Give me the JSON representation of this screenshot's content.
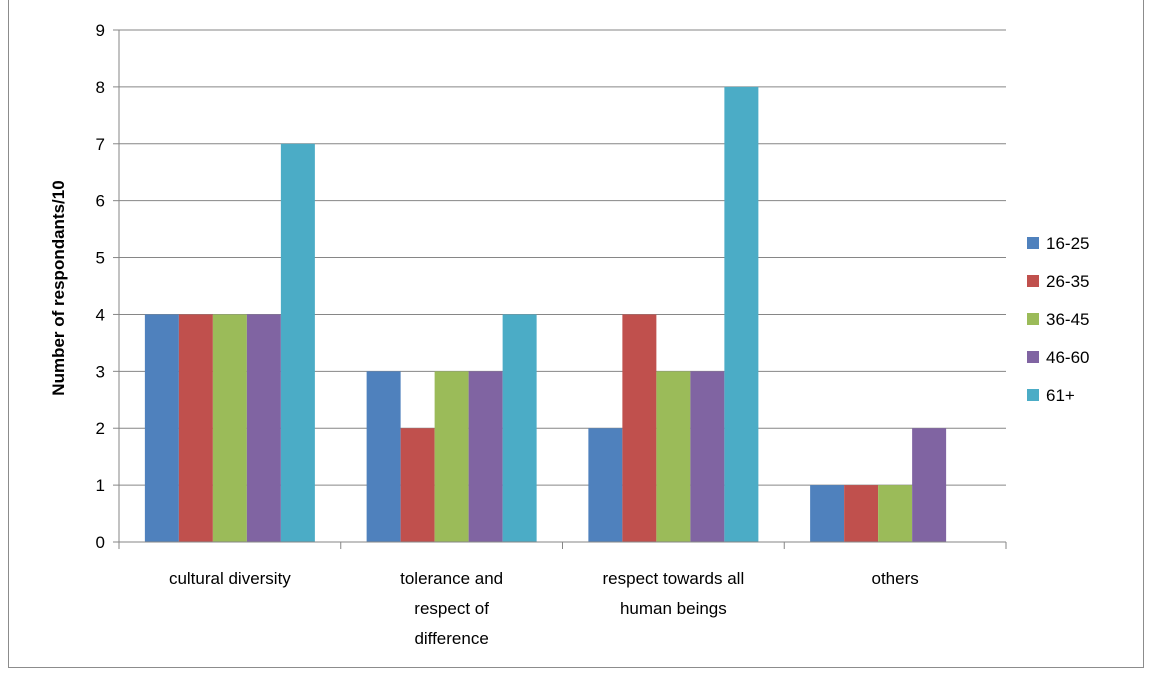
{
  "chart_data": {
    "type": "bar",
    "title": "",
    "xlabel": "",
    "ylabel": "Number of respondants/10",
    "ylim": [
      0,
      9
    ],
    "yticks": [
      0,
      1,
      2,
      3,
      4,
      5,
      6,
      7,
      8,
      9
    ],
    "grid": true,
    "legend_position": "right",
    "categories": [
      [
        "cultural diversity"
      ],
      [
        "tolerance and",
        "respect of",
        "difference"
      ],
      [
        "respect towards all",
        "human beings"
      ],
      [
        "others"
      ]
    ],
    "series": [
      {
        "name": "16-25",
        "color": "#4F81BD",
        "values": [
          4,
          3,
          2,
          1
        ]
      },
      {
        "name": "26-35",
        "color": "#C0504D",
        "values": [
          4,
          2,
          4,
          1
        ]
      },
      {
        "name": "36-45",
        "color": "#9BBB59",
        "values": [
          4,
          3,
          3,
          1
        ]
      },
      {
        "name": "46-60",
        "color": "#8064A2",
        "values": [
          4,
          3,
          3,
          2
        ]
      },
      {
        "name": "61+",
        "color": "#4BACC6",
        "values": [
          7,
          4,
          8,
          0
        ]
      }
    ]
  }
}
